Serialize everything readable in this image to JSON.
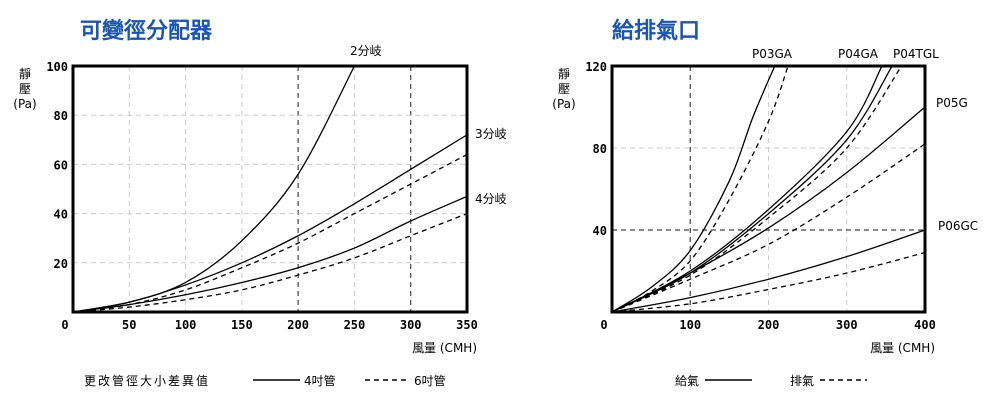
{
  "colors": {
    "title": "#1a56b0",
    "line": "#000000",
    "grid_light": "#cccccc",
    "grid_dark": "#444444"
  },
  "chart_data": [
    {
      "type": "line",
      "title": "可變徑分配器",
      "ylabel": [
        "靜",
        "壓",
        "(Pa)"
      ],
      "xlabel": "風量 (CMH)",
      "xlim": [
        0,
        350
      ],
      "ylim": [
        0,
        100
      ],
      "xticks": [
        0,
        50,
        100,
        150,
        200,
        250,
        300,
        350
      ],
      "yticks": [
        20,
        40,
        60,
        80,
        100
      ],
      "ytick_zero": "0",
      "grid": true,
      "legend": {
        "caption": "更改管徑大小差異值",
        "solid": "4吋管",
        "dashed": "6吋管",
        "placement": "bottom"
      },
      "series": [
        {
          "name": "2分岐",
          "style": "solid",
          "x": [
            0,
            50,
            100,
            150,
            200,
            250
          ],
          "y": [
            0,
            4,
            12,
            29,
            56,
            100
          ]
        },
        {
          "name": "3分岐",
          "style": "solid",
          "x": [
            0,
            50,
            100,
            150,
            200,
            250,
            300,
            350
          ],
          "y": [
            0,
            4,
            11,
            20,
            31,
            44,
            58,
            72
          ]
        },
        {
          "name": "",
          "style": "dashed",
          "x": [
            0,
            50,
            100,
            150,
            200,
            250,
            300,
            350
          ],
          "y": [
            0,
            3,
            9,
            18,
            28,
            40,
            52,
            64
          ]
        },
        {
          "name": "4分岐",
          "style": "solid",
          "x": [
            0,
            50,
            100,
            150,
            200,
            250,
            300,
            350
          ],
          "y": [
            0,
            3,
            7,
            12,
            18,
            26,
            37,
            47
          ]
        },
        {
          "name": "",
          "style": "dashed",
          "x": [
            0,
            50,
            100,
            150,
            200,
            250,
            300,
            350
          ],
          "y": [
            0,
            2,
            5,
            9,
            15,
            22,
            31,
            40
          ]
        }
      ]
    },
    {
      "type": "line",
      "title": "給排氣口",
      "ylabel": [
        "靜",
        "壓",
        "(Pa)"
      ],
      "xlabel": "風量 (CMH)",
      "xlim": [
        0,
        400
      ],
      "ylim": [
        0,
        120
      ],
      "xticks": [
        100,
        200,
        300,
        400
      ],
      "yticks": [
        40,
        80,
        120
      ],
      "ytick_zero": "0",
      "grid": true,
      "legend": {
        "solid": "給氣",
        "dashed": "排氣",
        "placement": "bottom"
      },
      "series": [
        {
          "name": "P03GA",
          "style": "solid",
          "x": [
            0,
            50,
            100,
            150,
            180,
            208
          ],
          "y": [
            0,
            12,
            30,
            64,
            95,
            120
          ]
        },
        {
          "name": "",
          "style": "dashed",
          "x": [
            0,
            50,
            100,
            150,
            200,
            225
          ],
          "y": [
            0,
            10,
            25,
            55,
            93,
            120
          ]
        },
        {
          "name": "P04GA",
          "style": "solid",
          "x": [
            0,
            100,
            200,
            300,
            345
          ],
          "y": [
            0,
            20,
            50,
            88,
            120
          ]
        },
        {
          "name": "P04TGL",
          "style": "solid",
          "x": [
            0,
            100,
            200,
            300,
            358
          ],
          "y": [
            0,
            19,
            48,
            84,
            120
          ]
        },
        {
          "name": "",
          "style": "dashed",
          "x": [
            0,
            100,
            200,
            300,
            370
          ],
          "y": [
            0,
            18,
            46,
            80,
            120
          ]
        },
        {
          "name": "P05G",
          "style": "solid",
          "x": [
            0,
            100,
            200,
            300,
            400
          ],
          "y": [
            0,
            19,
            41,
            68,
            100
          ]
        },
        {
          "name": "",
          "style": "dashed",
          "x": [
            0,
            100,
            200,
            300,
            400
          ],
          "y": [
            0,
            16,
            33,
            56,
            82
          ]
        },
        {
          "name": "P06GC",
          "style": "solid",
          "x": [
            0,
            100,
            200,
            300,
            400
          ],
          "y": [
            0,
            7,
            16,
            27,
            40
          ]
        },
        {
          "name": "",
          "style": "dashed",
          "x": [
            0,
            100,
            200,
            300,
            400
          ],
          "y": [
            0,
            4,
            11,
            19,
            29
          ]
        }
      ]
    }
  ]
}
